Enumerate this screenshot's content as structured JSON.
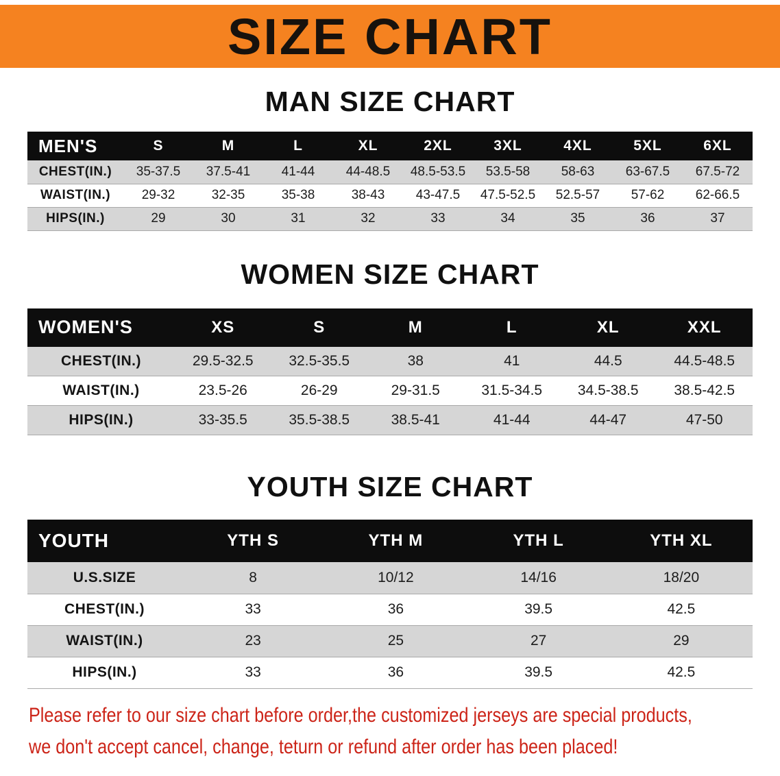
{
  "banner": {
    "title": "SIZE CHART"
  },
  "sections": [
    {
      "id": "men",
      "heading": "MAN SIZE CHART",
      "table": {
        "header": [
          "MEN'S",
          "S",
          "M",
          "L",
          "XL",
          "2XL",
          "3XL",
          "4XL",
          "5XL",
          "6XL"
        ],
        "rows": [
          {
            "label": "CHEST(IN.)",
            "values": [
              "35-37.5",
              "37.5-41",
              "41-44",
              "44-48.5",
              "48.5-53.5",
              "53.5-58",
              "58-63",
              "63-67.5",
              "67.5-72"
            ]
          },
          {
            "label": "WAIST(IN.)",
            "values": [
              "29-32",
              "32-35",
              "35-38",
              "38-43",
              "43-47.5",
              "47.5-52.5",
              "52.5-57",
              "57-62",
              "62-66.5"
            ]
          },
          {
            "label": "HIPS(IN.)",
            "values": [
              "29",
              "30",
              "31",
              "32",
              "33",
              "34",
              "35",
              "36",
              "37"
            ]
          }
        ]
      }
    },
    {
      "id": "women",
      "heading": "WOMEN SIZE CHART",
      "table": {
        "header": [
          "WOMEN'S",
          "XS",
          "S",
          "M",
          "L",
          "XL",
          "XXL"
        ],
        "rows": [
          {
            "label": "CHEST(IN.)",
            "values": [
              "29.5-32.5",
              "32.5-35.5",
              "38",
              "41",
              "44.5",
              "44.5-48.5"
            ]
          },
          {
            "label": "WAIST(IN.)",
            "values": [
              "23.5-26",
              "26-29",
              "29-31.5",
              "31.5-34.5",
              "34.5-38.5",
              "38.5-42.5"
            ]
          },
          {
            "label": "HIPS(IN.)",
            "values": [
              "33-35.5",
              "35.5-38.5",
              "38.5-41",
              "41-44",
              "44-47",
              "47-50"
            ]
          }
        ]
      }
    },
    {
      "id": "youth",
      "heading": "YOUTH SIZE CHART",
      "table": {
        "header": [
          "YOUTH",
          "YTH S",
          "YTH M",
          "YTH L",
          "YTH XL"
        ],
        "rows": [
          {
            "label": "U.S.SIZE",
            "values": [
              "8",
              "10/12",
              "14/16",
              "18/20"
            ]
          },
          {
            "label": "CHEST(IN.)",
            "values": [
              "33",
              "36",
              "39.5",
              "42.5"
            ]
          },
          {
            "label": "WAIST(IN.)",
            "values": [
              "23",
              "25",
              "27",
              "29"
            ]
          },
          {
            "label": "HIPS(IN.)",
            "values": [
              "33",
              "36",
              "39.5",
              "42.5"
            ]
          }
        ]
      }
    }
  ],
  "footer_note": {
    "lines": [
      "Please refer to our size chart before order,the customized jerseys are special products,",
      "we don't accept cancel, change, teturn or refund after order has been placed!"
    ]
  },
  "palette": {
    "banner_bg": "#f58220",
    "banner_text": "#17120d",
    "table_header_bg": "#0d0d0d",
    "table_header_text": "#ffffff",
    "row_stripe": "#d6d6d6",
    "note_text": "#cc2418"
  }
}
